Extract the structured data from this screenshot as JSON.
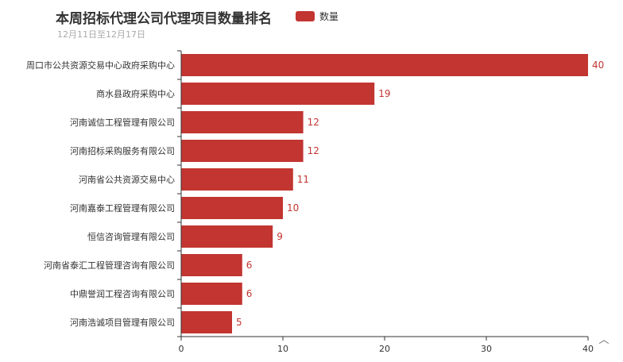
{
  "chart_data": {
    "type": "bar",
    "orientation": "horizontal",
    "title": "本周招标代理公司代理项目数量排名",
    "subtitle": "12月11日至12月17日",
    "categories": [
      "周口市公共资源交易中心政府采购中心",
      "商水县政府采购中心",
      "河南诚信工程管理有限公司",
      "河南招标采购服务有限公司",
      "河南省公共资源交易中心",
      "河南嘉泰工程管理有限公司",
      "恒信咨询管理有限公司",
      "河南省泰汇工程管理咨询有限公司",
      "中鼎誉润工程咨询有限公司",
      "河南浩诚项目管理有限公司"
    ],
    "series": [
      {
        "name": "数量",
        "values": [
          40,
          19,
          12,
          12,
          11,
          10,
          9,
          6,
          6,
          5
        ]
      }
    ],
    "x_ticks": [
      "0",
      "10",
      "20",
      "30",
      "40"
    ],
    "xlim": [
      0,
      40
    ],
    "grid": false,
    "legend_position": "top",
    "bar_color": "#c23531",
    "label_color": "#c23531",
    "axis_color": "#333333",
    "tick_label_color": "#333333"
  },
  "toolbox": {
    "icon": "chevron-up-icon",
    "glyph": "︿"
  }
}
